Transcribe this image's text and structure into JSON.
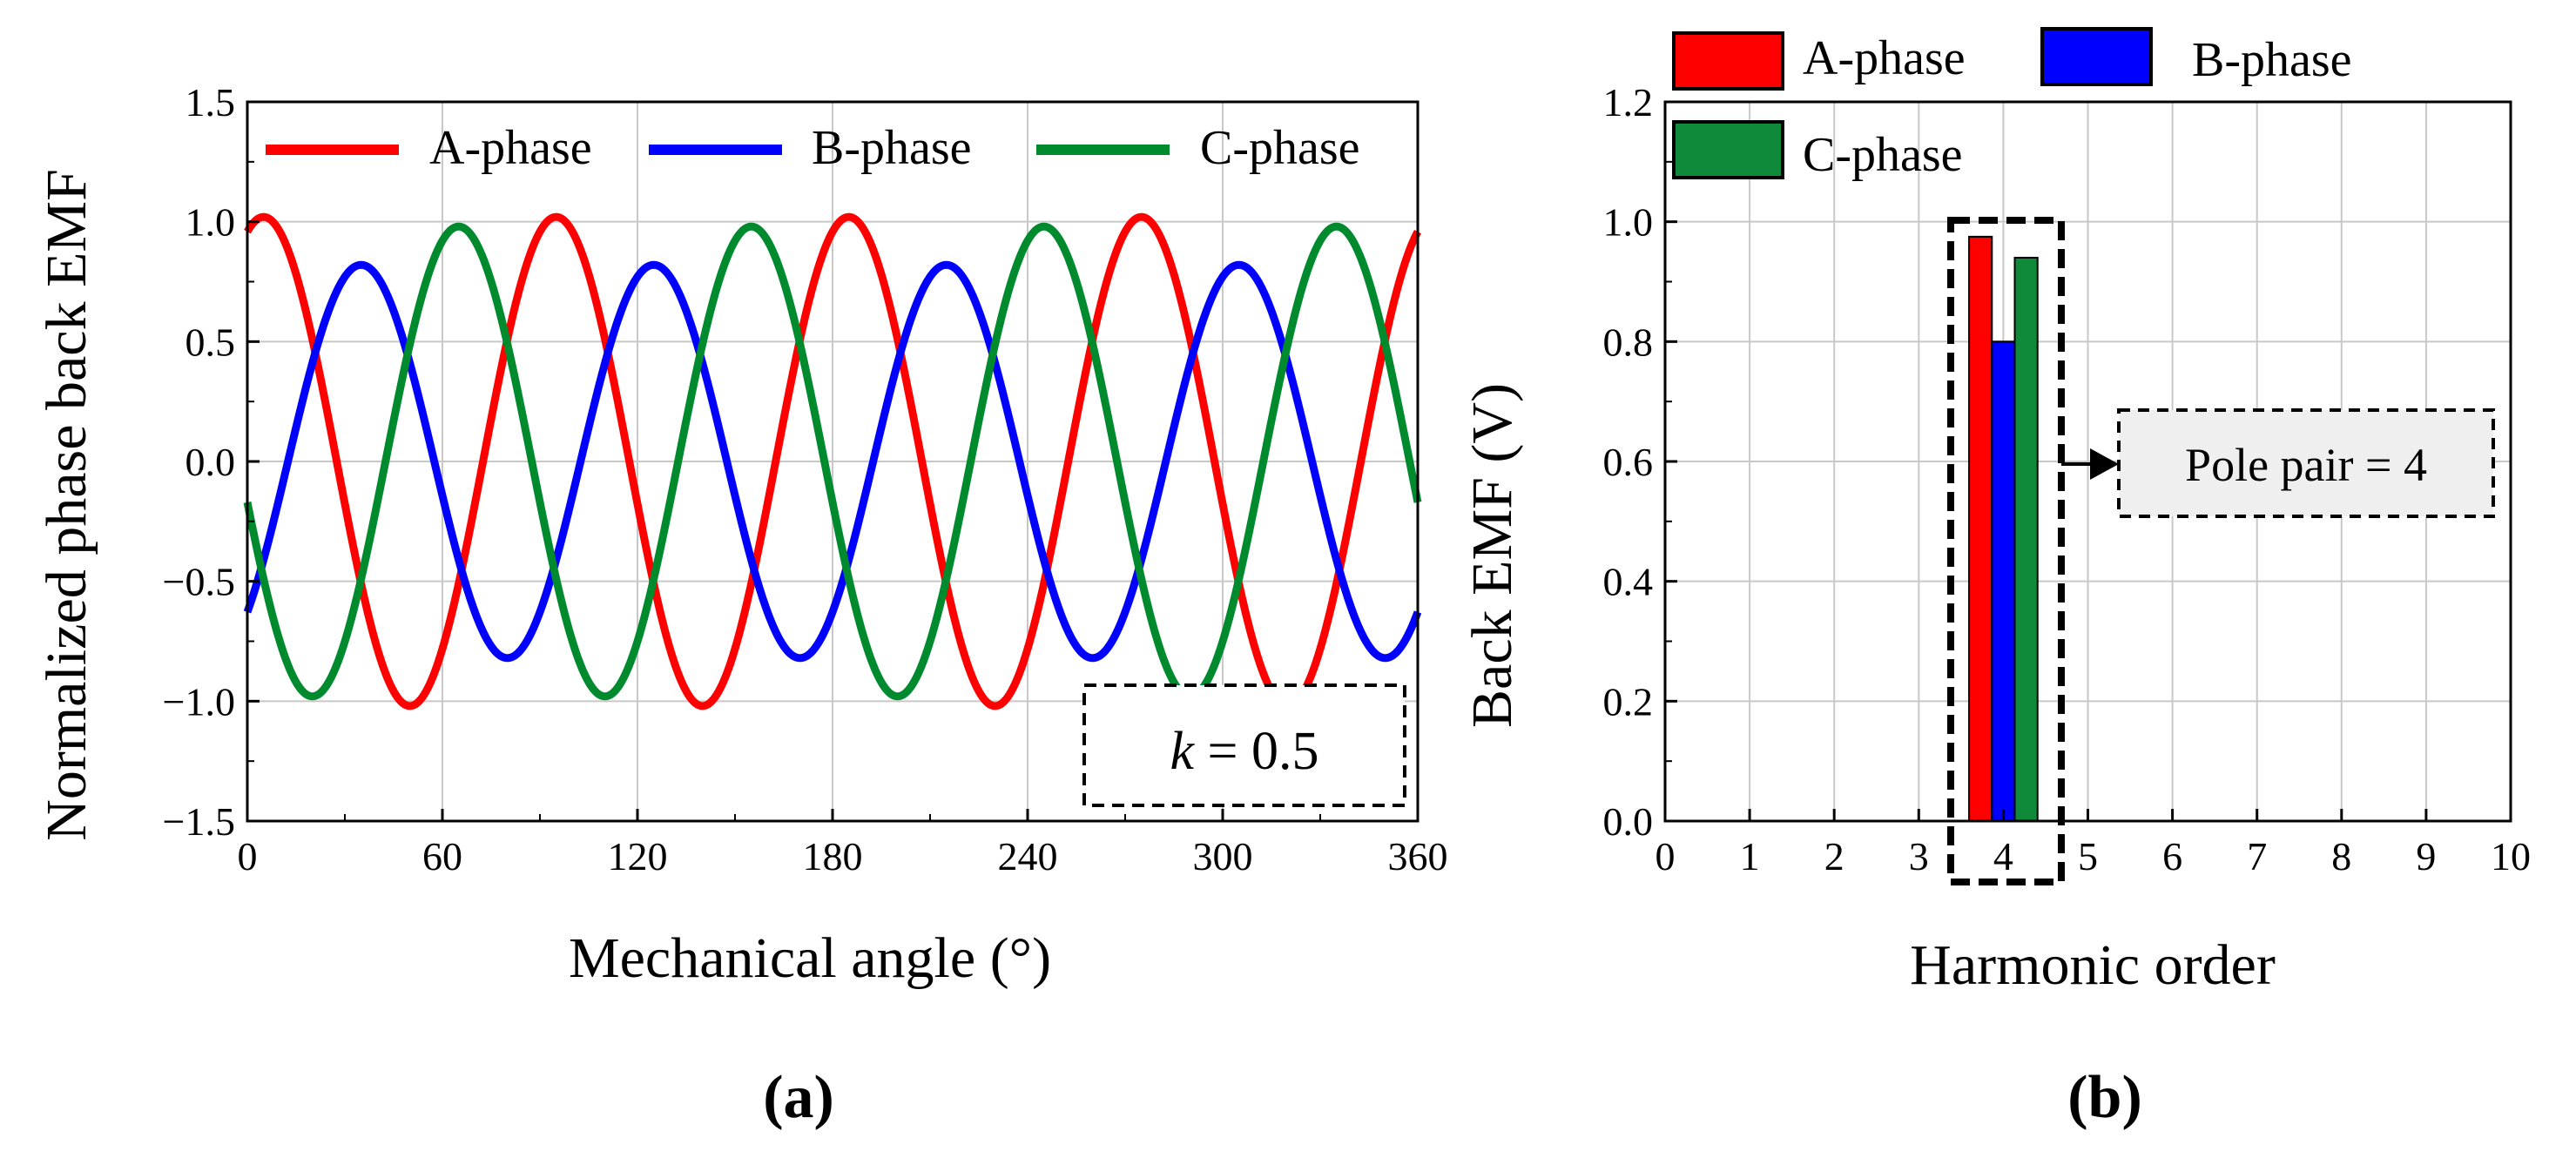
{
  "chart_data": [
    {
      "type": "line",
      "panel_label": "(a)",
      "xlabel": "Mechanical angle (°)",
      "ylabel": "Normalized  phase back EMF",
      "xlim": [
        0,
        360
      ],
      "ylim": [
        -1.5,
        1.5
      ],
      "xticks": [
        0,
        60,
        120,
        180,
        240,
        300,
        360
      ],
      "yticks": [
        1.5,
        1.0,
        0.5,
        0.0,
        -0.5,
        -1.0,
        -1.5
      ],
      "xtick_labels": [
        "0",
        "60",
        "120",
        "180",
        "240",
        "300",
        "360"
      ],
      "ytick_labels": [
        "1.5",
        "1.0",
        "0.5",
        "0.0",
        "−0.5",
        "−1.0",
        "−1.5"
      ],
      "grid": true,
      "legend_position": "top",
      "annotation": {
        "italic": "k",
        "rest": " = 0.5"
      },
      "electrical_period_deg": 90,
      "series": [
        {
          "name": "A-phase",
          "color": "#ff0000",
          "amplitude": 1.02,
          "peak_angles": [
            5,
            95,
            185,
            275
          ]
        },
        {
          "name": "B-phase",
          "color": "#0000ff",
          "amplitude": 0.82,
          "peak_angles": [
            35,
            125,
            215,
            305
          ]
        },
        {
          "name": "C-phase",
          "color": "#008a2e",
          "amplitude": 0.98,
          "peak_angles": [
            65,
            155,
            245,
            335
          ]
        }
      ]
    },
    {
      "type": "bar",
      "panel_label": "(b)",
      "xlabel": "Harmonic order",
      "ylabel": "Back EMF (V)",
      "xlim": [
        0,
        10
      ],
      "ylim": [
        0,
        1.2
      ],
      "xticks": [
        0,
        1,
        2,
        3,
        4,
        5,
        6,
        7,
        8,
        9,
        10
      ],
      "yticks": [
        0.0,
        0.2,
        0.4,
        0.6,
        0.8,
        1.0,
        1.2
      ],
      "xtick_labels": [
        "0",
        "1",
        "2",
        "3",
        "4",
        "5",
        "6",
        "7",
        "8",
        "9",
        "10"
      ],
      "ytick_labels": [
        "0.0",
        "0.2",
        "0.4",
        "0.6",
        "0.8",
        "1.0",
        "1.2"
      ],
      "grid": true,
      "legend_position": "top",
      "categories": [
        4
      ],
      "series": [
        {
          "name": "A-phase",
          "color": "#ff0000",
          "values": [
            0.975
          ]
        },
        {
          "name": "B-phase",
          "color": "#0000ff",
          "values": [
            0.8
          ]
        },
        {
          "name": "C-phase",
          "color": "#0f8a3a",
          "values": [
            0.94
          ]
        }
      ],
      "annotation": "Pole pair = 4"
    }
  ]
}
